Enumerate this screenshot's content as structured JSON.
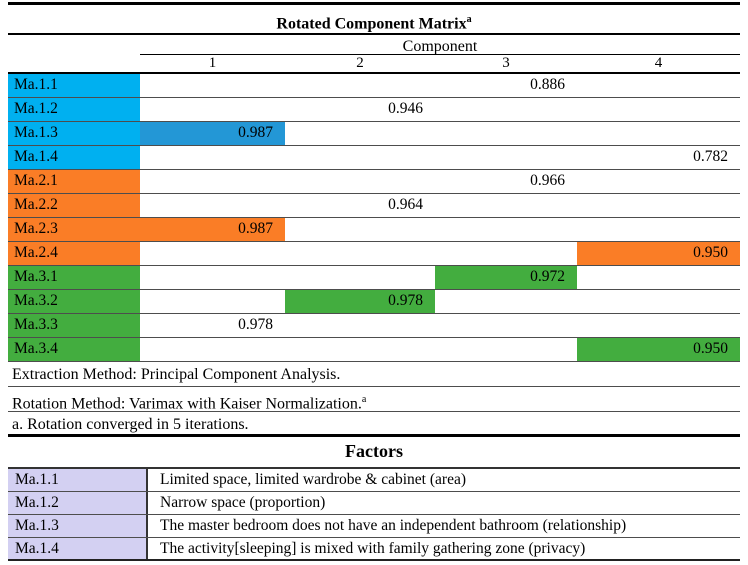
{
  "colors": {
    "label": {
      "blue": "#00B0F0",
      "orange": "#FA7D26",
      "green": "#43AD3F"
    },
    "fill": {
      "blue": "#2397D6",
      "orange": "#FA7D26",
      "green": "#43AD3F"
    },
    "factor_label_bg": "#D3D0F2"
  },
  "matrix_table": {
    "title": "Rotated Component Matrix",
    "title_sup": "a",
    "header_group": "Component",
    "columns": [
      "1",
      "2",
      "3",
      "4"
    ],
    "rows": [
      {
        "label": "Ma.1.1",
        "group": "blue",
        "values": [
          "",
          "",
          "0.886",
          ""
        ],
        "filled_col": null
      },
      {
        "label": "Ma.1.2",
        "group": "blue",
        "values": [
          "",
          "0.946",
          "",
          ""
        ],
        "filled_col": null
      },
      {
        "label": "Ma.1.3",
        "group": "blue",
        "values": [
          "0.987",
          "",
          "",
          ""
        ],
        "filled_col": 0
      },
      {
        "label": "Ma.1.4",
        "group": "blue",
        "values": [
          "",
          "",
          "",
          "0.782"
        ],
        "filled_col": null
      },
      {
        "label": "Ma.2.1",
        "group": "orange",
        "values": [
          "",
          "",
          "0.966",
          ""
        ],
        "filled_col": null
      },
      {
        "label": "Ma.2.2",
        "group": "orange",
        "values": [
          "",
          "0.964",
          "",
          ""
        ],
        "filled_col": null
      },
      {
        "label": "Ma.2.3",
        "group": "orange",
        "values": [
          "0.987",
          "",
          "",
          ""
        ],
        "filled_col": 0
      },
      {
        "label": "Ma.2.4",
        "group": "orange",
        "values": [
          "",
          "",
          "",
          "0.950"
        ],
        "filled_col": 3
      },
      {
        "label": "Ma.3.1",
        "group": "green",
        "values": [
          "",
          "",
          "0.972",
          ""
        ],
        "filled_col": 2
      },
      {
        "label": "Ma.3.2",
        "group": "green",
        "values": [
          "",
          "0.978",
          "",
          ""
        ],
        "filled_col": 1
      },
      {
        "label": "Ma.3.3",
        "group": "green",
        "values": [
          "0.978",
          "",
          "",
          ""
        ],
        "filled_col": null
      },
      {
        "label": "Ma.3.4",
        "group": "green",
        "values": [
          "",
          "",
          "",
          "0.950"
        ],
        "filled_col": 3
      }
    ],
    "footnotes": [
      {
        "text": "Extraction Method: Principal Component Analysis.",
        "sup": ""
      },
      {
        "text": "Rotation Method: Varimax with Kaiser Normalization.",
        "sup": "a"
      },
      {
        "text": "a. Rotation converged in 5 iterations.",
        "sup": ""
      }
    ]
  },
  "factors_table": {
    "title": "Factors",
    "rows": [
      {
        "label": "Ma.1.1",
        "description": "Limited space, limited wardrobe & cabinet (area)"
      },
      {
        "label": "Ma.1.2",
        "description": "Narrow space (proportion)"
      },
      {
        "label": "Ma.1.3",
        "description": "The master bedroom does not have an independent bathroom (relationship)"
      },
      {
        "label": "Ma.1.4",
        "description": "The activity[sleeping] is mixed with family gathering zone (privacy)"
      }
    ]
  }
}
